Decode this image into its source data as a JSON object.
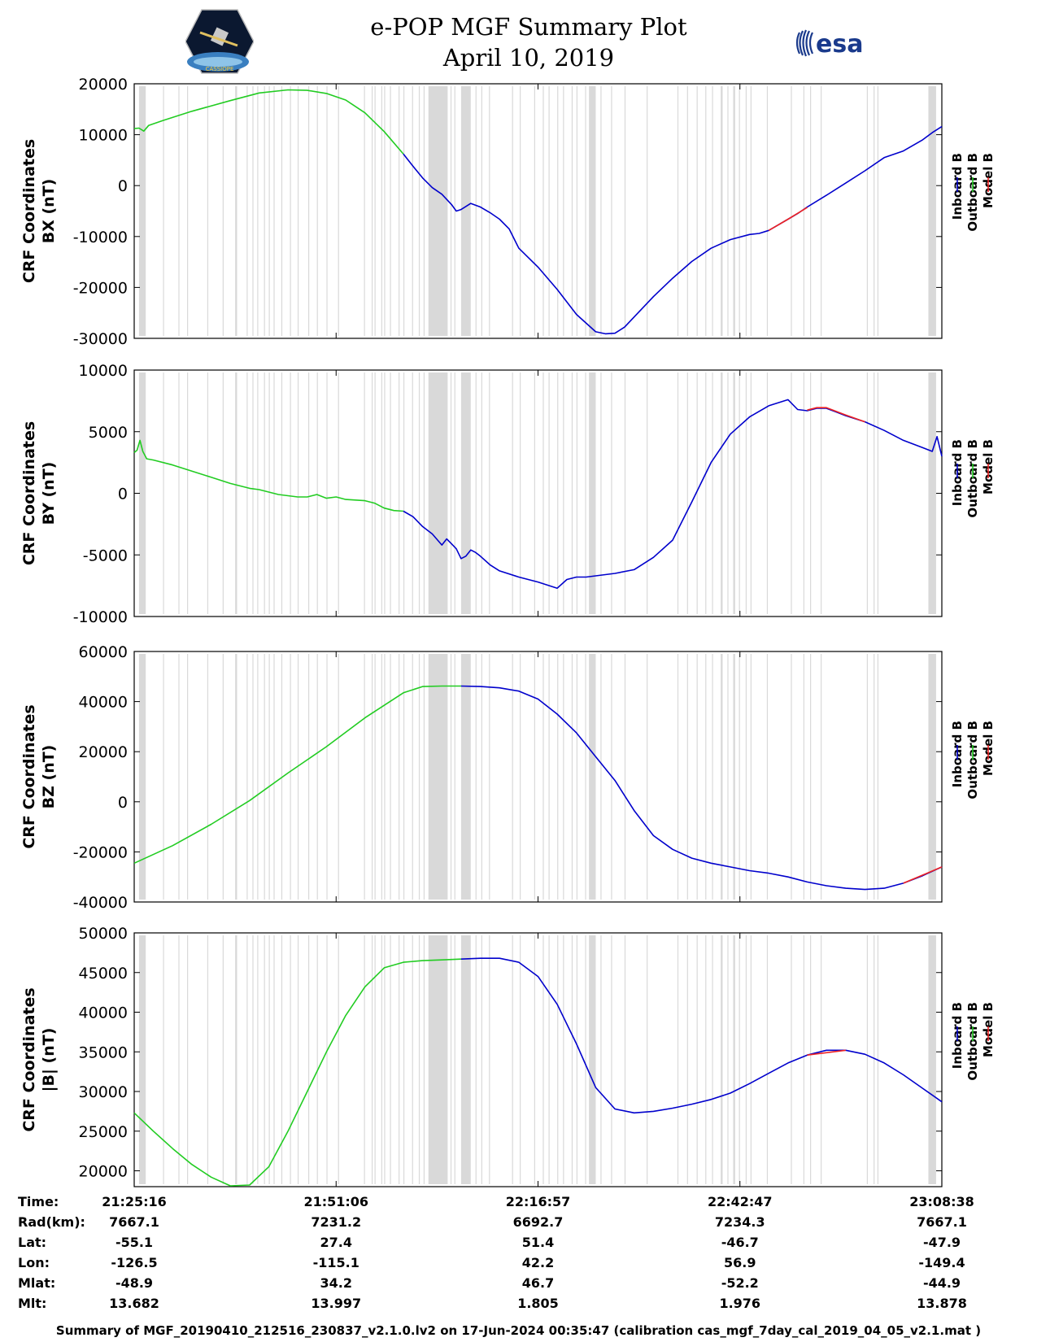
{
  "header": {
    "title_line1": "e-POP MGF Summary Plot",
    "title_line2": "April 10, 2019",
    "left_logo": {
      "name": "cassiope-mission-logo",
      "text": "CASSIOPE"
    },
    "right_logo": {
      "name": "esa-logo",
      "text": "esa"
    }
  },
  "colors": {
    "inboard": "#0000cc",
    "outboard": "#22cc22",
    "model": "#ee2222",
    "gap_shading": "#d9d9d9"
  },
  "gap_intervals_min": [
    [
      0.5,
      1.2
    ],
    [
      3.0,
      3.1
    ],
    [
      4.6,
      4.7
    ],
    [
      5.5,
      5.6
    ],
    [
      7.6,
      7.7
    ],
    [
      9.2,
      9.3
    ],
    [
      10.5,
      10.7
    ],
    [
      11.7,
      11.8
    ],
    [
      12.3,
      12.4
    ],
    [
      12.8,
      12.9
    ],
    [
      13.5,
      13.6
    ],
    [
      14.0,
      14.1
    ],
    [
      14.5,
      14.6
    ],
    [
      15.3,
      15.4
    ],
    [
      16.2,
      16.3
    ],
    [
      17.0,
      17.1
    ],
    [
      18.1,
      18.2
    ],
    [
      19.0,
      19.1
    ],
    [
      20.0,
      20.1
    ],
    [
      21.2,
      21.3
    ],
    [
      23.9,
      24.0
    ],
    [
      24.7,
      24.8
    ],
    [
      25.0,
      25.1
    ],
    [
      25.7,
      25.8
    ],
    [
      26.0,
      26.1
    ],
    [
      26.6,
      26.7
    ],
    [
      27.5,
      27.6
    ],
    [
      28.0,
      28.1
    ],
    [
      28.9,
      29.0
    ],
    [
      29.6,
      29.7
    ],
    [
      30.1,
      30.2
    ],
    [
      30.6,
      32.6
    ],
    [
      32.9,
      33.0
    ],
    [
      33.3,
      33.4
    ],
    [
      34.0,
      35.0
    ],
    [
      35.5,
      35.6
    ],
    [
      36.1,
      36.2
    ],
    [
      36.9,
      37.0
    ],
    [
      39.3,
      39.4
    ],
    [
      40.1,
      40.2
    ],
    [
      41.6,
      41.7
    ],
    [
      42.5,
      42.6
    ],
    [
      43.1,
      43.2
    ],
    [
      44.0,
      44.1
    ],
    [
      44.6,
      44.7
    ],
    [
      45.5,
      45.6
    ],
    [
      46.0,
      46.1
    ],
    [
      46.9,
      47.0
    ],
    [
      47.3,
      48.0
    ],
    [
      48.5,
      48.6
    ],
    [
      49.6,
      49.7
    ],
    [
      51.0,
      51.1
    ],
    [
      53.3,
      53.4
    ],
    [
      56.5,
      56.6
    ],
    [
      57.5,
      57.6
    ],
    [
      58.5,
      58.6
    ],
    [
      59.4,
      59.5
    ],
    [
      60.1,
      60.2
    ],
    [
      61.0,
      61.2
    ],
    [
      61.7,
      61.8
    ],
    [
      62.3,
      62.5
    ],
    [
      62.9,
      63.0
    ],
    [
      63.6,
      63.7
    ],
    [
      64.1,
      64.2
    ],
    [
      65.8,
      65.9
    ],
    [
      68.3,
      68.4
    ],
    [
      69.6,
      69.7
    ],
    [
      70.3,
      70.4
    ],
    [
      71.4,
      71.5
    ],
    [
      76.2,
      76.3
    ],
    [
      76.9,
      77.0
    ],
    [
      77.3,
      77.4
    ],
    [
      82.6,
      83.4
    ]
  ],
  "chart_data": [
    {
      "type": "line",
      "ylabel_line1": "CRF Coordinates",
      "ylabel_line2": "BX (nT)",
      "ylim": [
        -30000,
        20000
      ],
      "yticks": [
        20000,
        10000,
        0,
        -10000,
        -20000,
        -30000
      ],
      "ytick_labels": [
        "20000",
        "10000",
        "0",
        "-10000",
        "-20000",
        "-30000"
      ],
      "legend": [
        "Inboard B",
        "Outboard B",
        "Model B"
      ],
      "series": [
        {
          "name": "Outboard B",
          "x": [
            0,
            0.5,
            1,
            1.5,
            3,
            6,
            10,
            13,
            16,
            18,
            20,
            22,
            24,
            26,
            28
          ],
          "values": [
            11200,
            11300,
            10700,
            11800,
            12800,
            14600,
            16700,
            18200,
            18800,
            18700,
            18100,
            16800,
            14300,
            10600,
            6200
          ]
        },
        {
          "name": "Inboard B",
          "x": [
            28,
            29,
            30,
            31,
            32,
            33,
            33.5,
            34,
            35,
            36,
            37,
            38,
            39,
            40,
            42,
            44,
            46,
            48,
            49,
            50,
            51,
            52,
            54,
            56,
            58,
            60,
            62,
            64,
            65,
            66,
            67,
            68,
            69,
            70,
            72,
            74,
            76,
            78,
            80,
            82,
            83,
            84
          ],
          "values": [
            6200,
            3800,
            1500,
            -400,
            -1700,
            -3700,
            -5000,
            -4700,
            -3500,
            -4200,
            -5300,
            -6600,
            -8500,
            -12300,
            -16000,
            -20400,
            -25300,
            -28700,
            -29100,
            -29000,
            -27800,
            -25800,
            -21800,
            -18200,
            -14900,
            -12300,
            -10600,
            -9600,
            -9400,
            -8800,
            -7700,
            -6600,
            -5500,
            -4200,
            -1900,
            500,
            2900,
            5500,
            6800,
            9000,
            10400,
            11600
          ]
        },
        {
          "name": "Model B",
          "x": [
            66,
            68,
            70
          ],
          "values": [
            -8800,
            -6600,
            -4300
          ]
        }
      ]
    },
    {
      "type": "line",
      "ylabel_line1": "CRF Coordinates",
      "ylabel_line2": "BY (nT)",
      "ylim": [
        -10000,
        10000
      ],
      "yticks": [
        10000,
        5000,
        0,
        -5000,
        -10000
      ],
      "ytick_labels": [
        "10000",
        "5000",
        "0",
        "-5000",
        "-10000"
      ],
      "legend": [
        "Inboard B",
        "Outboard B",
        "Model B"
      ],
      "series": [
        {
          "name": "Outboard B",
          "x": [
            0,
            0.3,
            0.6,
            0.9,
            1.3,
            2,
            4,
            6,
            8,
            10,
            12,
            13,
            14,
            15,
            16,
            17,
            18,
            19,
            20,
            21,
            22,
            24,
            25,
            26,
            27,
            28
          ],
          "values": [
            3300,
            3500,
            4300,
            3400,
            2800,
            2700,
            2300,
            1800,
            1300,
            800,
            400,
            300,
            100,
            -100,
            -200,
            -300,
            -300,
            -100,
            -400,
            -300,
            -500,
            -600,
            -800,
            -1200,
            -1400,
            -1450
          ]
        },
        {
          "name": "Inboard B",
          "x": [
            28,
            29,
            30,
            31,
            32,
            32.5,
            33,
            33.5,
            34,
            34.5,
            35,
            35.5,
            36,
            37,
            38,
            40,
            42,
            44,
            45,
            46,
            46.5,
            47,
            48,
            50,
            52,
            54,
            56,
            58,
            60,
            62,
            64,
            66,
            68,
            69,
            70,
            71,
            72,
            73,
            74,
            76,
            78,
            80,
            82,
            83,
            83.5,
            84
          ],
          "values": [
            -1450,
            -1900,
            -2700,
            -3300,
            -4200,
            -3700,
            -4100,
            -4500,
            -5300,
            -5100,
            -4600,
            -4800,
            -5100,
            -5800,
            -6300,
            -6800,
            -7200,
            -7700,
            -7000,
            -6800,
            -6800,
            -6800,
            -6700,
            -6500,
            -6200,
            -5200,
            -3800,
            -700,
            2500,
            4800,
            6200,
            7100,
            7600,
            6800,
            6700,
            6900,
            6900,
            6600,
            6300,
            5800,
            5100,
            4300,
            3700,
            3400,
            4600,
            3000
          ]
        },
        {
          "name": "Model B",
          "x": [
            70,
            71,
            72,
            73,
            74,
            76
          ],
          "values": [
            6750,
            6950,
            6950,
            6650,
            6350,
            5800
          ]
        }
      ]
    },
    {
      "type": "line",
      "ylabel_line1": "CRF Coordinates",
      "ylabel_line2": "BZ (nT)",
      "ylim": [
        -40000,
        60000
      ],
      "yticks": [
        60000,
        40000,
        20000,
        0,
        -20000,
        -40000
      ],
      "ytick_labels": [
        "60000",
        "40000",
        "20000",
        "0",
        "-20000",
        "-40000"
      ],
      "legend": [
        "Inboard B",
        "Outboard B",
        "Model B"
      ],
      "series": [
        {
          "name": "Outboard B",
          "x": [
            0,
            4,
            8,
            12,
            16,
            20,
            24,
            28,
            30,
            32,
            34
          ],
          "values": [
            -24500,
            -17500,
            -9000,
            500,
            11500,
            22000,
            33500,
            43500,
            46000,
            46200,
            46200
          ]
        },
        {
          "name": "Inboard B",
          "x": [
            34,
            36,
            38,
            40,
            42,
            44,
            46,
            48,
            50,
            52,
            54,
            56,
            58,
            60,
            62,
            64,
            66,
            68,
            70,
            72,
            74,
            76,
            78,
            80,
            82,
            84
          ],
          "values": [
            46200,
            46000,
            45500,
            44200,
            41000,
            35000,
            27500,
            18000,
            8500,
            -3500,
            -13500,
            -19000,
            -22500,
            -24500,
            -26000,
            -27500,
            -28500,
            -30000,
            -32000,
            -33500,
            -34500,
            -35000,
            -34500,
            -32500,
            -29500,
            -26000
          ]
        },
        {
          "name": "Model B",
          "x": [
            80,
            84
          ],
          "values": [
            -32500,
            -26000
          ]
        }
      ]
    },
    {
      "type": "line",
      "ylabel_line1": "CRF Coordinates",
      "ylabel_line2": "|B| (nT)",
      "ylim": [
        18000,
        50000
      ],
      "yticks": [
        50000,
        45000,
        40000,
        35000,
        30000,
        25000,
        20000
      ],
      "ytick_labels": [
        "50000",
        "45000",
        "40000",
        "35000",
        "30000",
        "25000",
        "20000"
      ],
      "legend": [
        "Inboard B",
        "Outboard B",
        "Model B"
      ],
      "series": [
        {
          "name": "Outboard B",
          "x": [
            0,
            2,
            4,
            6,
            8,
            10,
            12,
            14,
            16,
            18,
            20,
            22,
            24,
            26,
            28,
            30,
            32,
            34
          ],
          "values": [
            27300,
            25000,
            22800,
            20800,
            19200,
            18100,
            18200,
            20500,
            25000,
            30000,
            35000,
            39600,
            43200,
            45600,
            46300,
            46500,
            46600,
            46700
          ]
        },
        {
          "name": "Inboard B",
          "x": [
            34,
            36,
            38,
            40,
            42,
            44,
            46,
            48,
            50,
            52,
            54,
            56,
            58,
            60,
            62,
            64,
            66,
            68,
            70,
            72,
            74,
            76,
            78,
            80,
            82,
            84
          ],
          "values": [
            46700,
            46800,
            46800,
            46300,
            44500,
            41000,
            36000,
            30500,
            27800,
            27300,
            27500,
            27900,
            28400,
            29000,
            29800,
            31000,
            32300,
            33600,
            34600,
            35200,
            35200,
            34700,
            33600,
            32100,
            30400,
            28700
          ]
        },
        {
          "name": "Model B",
          "x": [
            70,
            74
          ],
          "values": [
            34600,
            35200
          ]
        }
      ]
    }
  ],
  "x_axis": {
    "range_min": [
      0,
      84
    ],
    "tick_minutes": [
      0,
      21,
      42,
      63,
      84
    ]
  },
  "info_table": {
    "columns_min": [
      0,
      21,
      42,
      63,
      84
    ],
    "rows": [
      {
        "label": "Time:",
        "values": [
          "21:25:16",
          "21:51:06",
          "22:16:57",
          "22:42:47",
          "23:08:38"
        ]
      },
      {
        "label": "Rad(km):",
        "values": [
          "7667.1",
          "7231.2",
          "6692.7",
          "7234.3",
          "7667.1"
        ]
      },
      {
        "label": "Lat:",
        "values": [
          "-55.1",
          "27.4",
          "51.4",
          "-46.7",
          "-47.9"
        ]
      },
      {
        "label": "Lon:",
        "values": [
          "-126.5",
          "-115.1",
          "42.2",
          "56.9",
          "-149.4"
        ]
      },
      {
        "label": "Mlat:",
        "values": [
          "-48.9",
          "34.2",
          "46.7",
          "-52.2",
          "-44.9"
        ]
      },
      {
        "label": "Mlt:",
        "values": [
          "13.682",
          "13.997",
          "1.805",
          "1.976",
          "13.878"
        ]
      }
    ]
  },
  "footer": "Summary of MGF_20190410_212516_230837_v2.1.0.lv2 on 17-Jun-2024 00:35:47 (calibration cas_mgf_7day_cal_2019_04_05_v2.1.mat )"
}
